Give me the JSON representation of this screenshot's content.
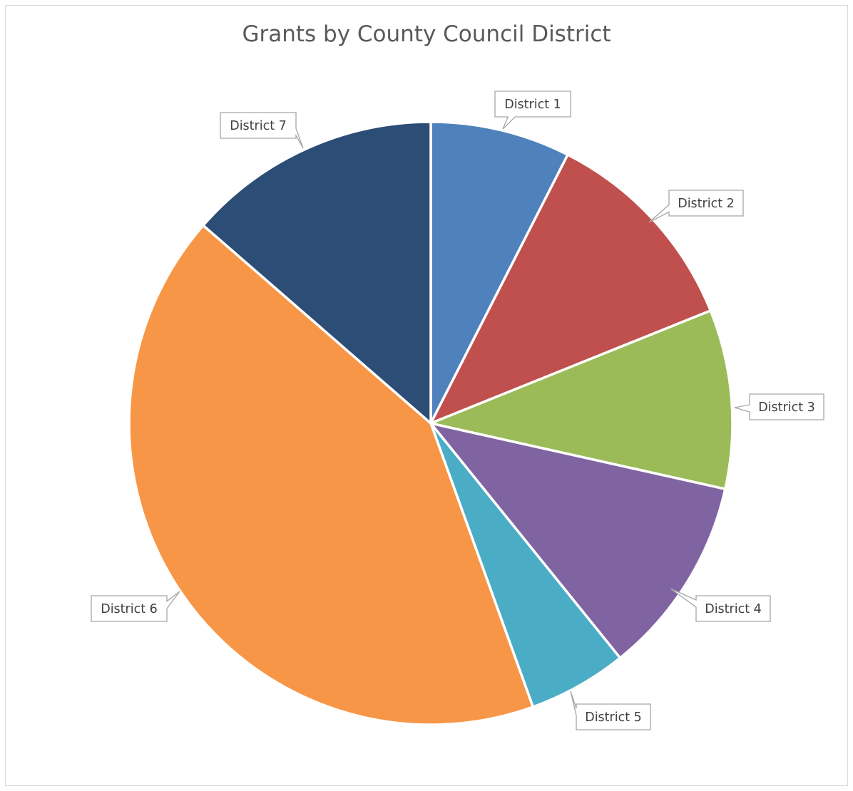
{
  "chart_data": {
    "type": "pie",
    "title": "Grants by County Council District",
    "categories": [
      "District 1",
      "District 2",
      "District 3",
      "District 4",
      "District 5",
      "District 6",
      "District 7"
    ],
    "values": [
      7.5,
      11.4,
      9.6,
      10.7,
      5.3,
      41.9,
      13.6
    ],
    "value_unit": "percent of total (estimated)",
    "colors": [
      "#4f81bd",
      "#c0504d",
      "#9bbb59",
      "#8064a2",
      "#4bacc6",
      "#f79646",
      "#2c4d75"
    ],
    "start": "12 o'clock, clockwise",
    "legend": "none",
    "data_labels": "category name callouts outside the slices"
  }
}
